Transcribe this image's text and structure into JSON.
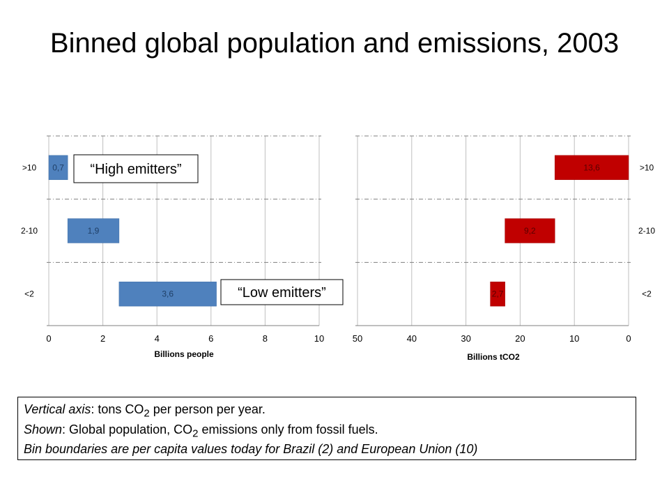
{
  "title": "Binned global population and emissions, 2003",
  "chart_data": [
    {
      "type": "bar",
      "orientation": "horizontal",
      "categories": [
        "<2",
        "2-10",
        ">10"
      ],
      "series": [
        {
          "values": [
            3.6,
            1.9,
            0.7
          ],
          "labels": [
            "3,6",
            "1,9",
            "0,7"
          ],
          "color": "#4f81bd"
        }
      ],
      "xlabel": "Billions people",
      "ylabel": "",
      "xlim": [
        0,
        10
      ],
      "xticks": [
        "0",
        "2",
        "4",
        "6",
        "8",
        "10"
      ],
      "grid": true,
      "annotations": [
        "“High emitters”",
        "“Low emitters”"
      ]
    },
    {
      "type": "bar",
      "orientation": "horizontal",
      "x_reversed": true,
      "categories": [
        "<2",
        "2-10",
        ">10"
      ],
      "series": [
        {
          "values": [
            2.7,
            9.2,
            13.6
          ],
          "labels": [
            "2,7",
            "9,2",
            "13,6"
          ],
          "color": "#c00000"
        }
      ],
      "xlabel": "Billions tCO2",
      "ylabel": "",
      "xlim": [
        0,
        50
      ],
      "xticks": [
        "50",
        "40",
        "30",
        "20",
        "10",
        "0"
      ],
      "grid": true
    }
  ],
  "caption": {
    "line1_em": "Vertical axis",
    "line1_a": ": tons CO",
    "line1_sub": "2",
    "line1_b": " per person per year.",
    "line2_em": "Shown",
    "line2_a": ": Global population, CO",
    "line2_sub": "2",
    "line2_b": " emissions only from fossil fuels.",
    "line3": "Bin boundaries are per capita values today for Brazil (2) and European Union (10)"
  }
}
